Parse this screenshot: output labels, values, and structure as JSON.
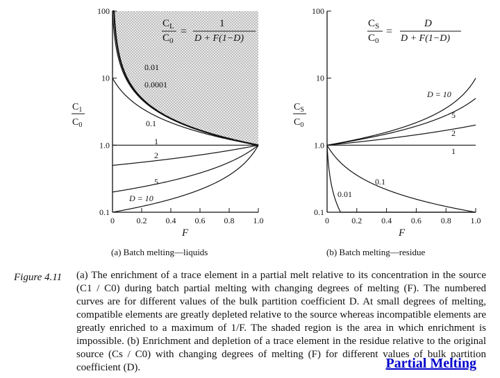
{
  "figure": {
    "label": "Figure 4.11",
    "caption": "(a) The enrichment of a trace element in a partial melt relative to its concentration in the source (C1 / C0) during batch partial melting with changing degrees of melting (F). The numbered curves are for different values of the bulk partition coefficient D. At small degrees of melting, compatible elements are greatly depleted relative to the source whereas incompatible elements are greatly enriched to a maximum of 1/F. The shaded region is the area in which enrichment is impossible. (b) Enrichment and depletion of a trace element in the residue relative to the original source (Cs / C0) with changing degrees of melting (F) for different values of bulk partition coefficient (D)."
  },
  "link_text": "Partial Melting",
  "chart_data": [
    {
      "type": "line",
      "title": "(a) Batch melting—liquids",
      "equation": "CL/C0 = 1 / (D + F(1−D))",
      "xlabel": "F",
      "ylabel": "CL/C0",
      "xlim": [
        0,
        1
      ],
      "ylim": [
        0.1,
        100
      ],
      "yscale": "log",
      "xticks": [
        "0",
        "0.2",
        "0.4",
        "0.6",
        "0.8",
        "1.0"
      ],
      "yticks": [
        "0.1",
        "1.0",
        "10",
        "100"
      ],
      "shaded_region": "area above D→0 curve (enrichment impossible)",
      "series": [
        {
          "name": "0.0001",
          "D": 0.0001
        },
        {
          "name": "0.01",
          "D": 0.01
        },
        {
          "name": "0.1",
          "D": 0.1
        },
        {
          "name": "1",
          "D": 1
        },
        {
          "name": "2",
          "D": 2
        },
        {
          "name": "5",
          "D": 5
        },
        {
          "name": "D = 10",
          "D": 10
        }
      ]
    },
    {
      "type": "line",
      "title": "(b) Batch melting—residue",
      "equation": "CS/C0 = D / (D + F(1−D))",
      "xlabel": "F",
      "ylabel": "CS/C0",
      "xlim": [
        0,
        1
      ],
      "ylim": [
        0.1,
        100
      ],
      "yscale": "log",
      "xticks": [
        "0",
        "0.2",
        "0.4",
        "0.6",
        "0.8",
        "1.0"
      ],
      "yticks": [
        "0.1",
        "1.0",
        "10",
        "100"
      ],
      "series": [
        {
          "name": "D = 10",
          "D": 10
        },
        {
          "name": "5",
          "D": 5
        },
        {
          "name": "2",
          "D": 2
        },
        {
          "name": "1",
          "D": 1
        },
        {
          "name": "0.1",
          "D": 0.1
        },
        {
          "name": "0.01",
          "D": 0.01
        }
      ]
    }
  ]
}
